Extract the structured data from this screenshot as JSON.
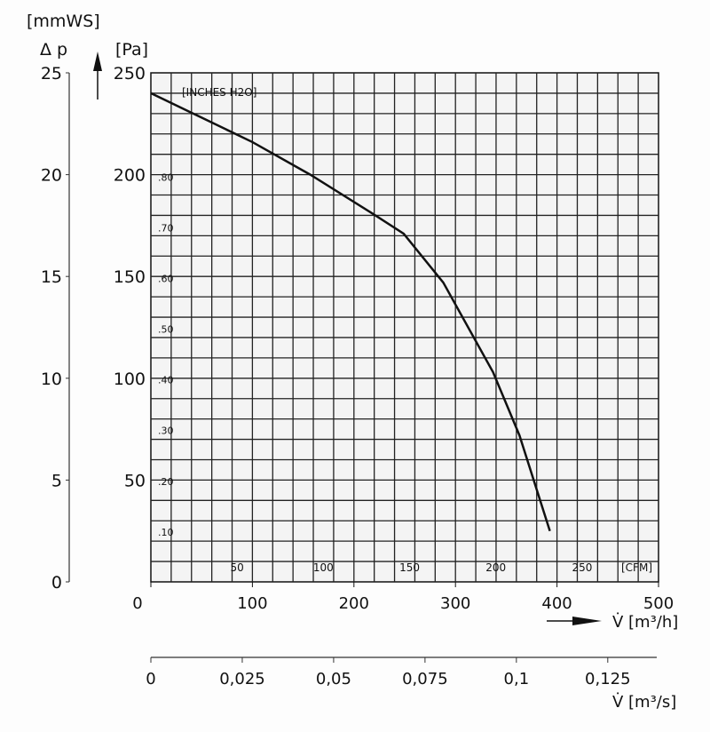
{
  "chart_data": {
    "type": "line",
    "title": "",
    "xlabel": "V̇ [m³/h]",
    "ylabel": "Δp [Pa]",
    "xlim": [
      0,
      500
    ],
    "ylim": [
      0,
      250
    ],
    "grid": true,
    "x_ticks": [
      "0",
      "100",
      "200",
      "300",
      "400",
      "500"
    ],
    "y_ticks": [
      "50",
      "100",
      "150",
      "200",
      "250"
    ],
    "y_unit": "[Pa]",
    "y2_label": "Δ p",
    "y2_unit": "[mmWS]",
    "y2_ticks": [
      "0",
      "5",
      "10",
      "15",
      "20",
      "25"
    ],
    "inch_label": "[INCHES H2O]",
    "inch_ticks": [
      ".10",
      ".20",
      ".30",
      ".40",
      ".50",
      ".60",
      ".70",
      ".80"
    ],
    "cfm_label": "[CFM]",
    "cfm_ticks": [
      "50",
      "100",
      "150",
      "200",
      "250"
    ],
    "x2_label": "V̇ [m³/s]",
    "x2_ticks": [
      "0",
      "0,025",
      "0,05",
      "0,075",
      "0,1",
      "0,125"
    ],
    "series": [
      {
        "name": "fan curve",
        "x": [
          0,
          50,
          100,
          157,
          218,
          249,
          288,
          337,
          363,
          393
        ],
        "y": [
          240,
          228,
          216,
          200,
          181,
          171,
          147,
          103,
          72,
          25
        ]
      }
    ]
  }
}
